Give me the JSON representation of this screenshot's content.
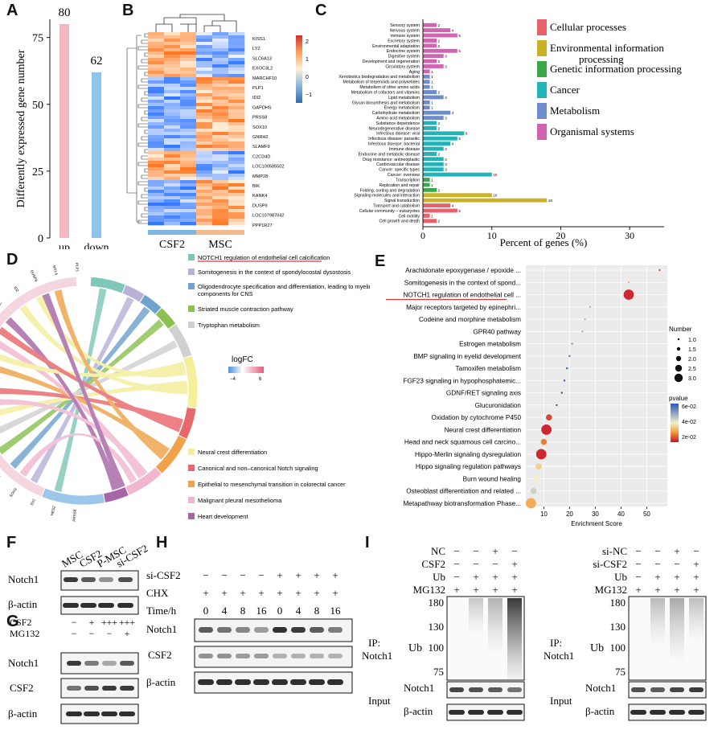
{
  "panels": {
    "A": "A",
    "B": "B",
    "C": "C",
    "D": "D",
    "E": "E",
    "F": "F",
    "G": "G",
    "H": "H",
    "I": "I"
  },
  "panelA": {
    "chart_data": {
      "type": "bar",
      "categories": [
        "up",
        "down"
      ],
      "values": [
        80,
        62
      ],
      "ylabel": "Differently expressed gene number",
      "ylim": [
        0,
        80
      ],
      "yticks": [
        0,
        25,
        50,
        75
      ],
      "colors": [
        "#f4b6c2",
        "#8ec3ea"
      ]
    }
  },
  "panelB": {
    "genes": [
      "KISS1",
      "LYZ",
      "SLC6A13",
      "EXOC3L2",
      "MARCHF10",
      "PLP1",
      "IDI2",
      "GAPDHS",
      "PRSS8",
      "SOX10",
      "GNRH2",
      "SLAMF9",
      "C2CD4D",
      "LOC100505502",
      "MMP28",
      "BIK",
      "KANK4",
      "DUSP9",
      "LOC107987042",
      "PPP1R27"
    ],
    "groups": [
      "CSF2",
      "MSC"
    ],
    "scale_ticks": [
      "2",
      "1",
      "0",
      "−1"
    ]
  },
  "panelC": {
    "chart_data": {
      "type": "bar",
      "xlabel": "Percent of genes (%)",
      "xticks": [
        0,
        10,
        20,
        30
      ],
      "xlim": [
        0,
        35
      ],
      "categories": [
        "Sensory system",
        "Nervous system",
        "Immune system",
        "Excretory system",
        "Environmental adaptation",
        "Endocrine system",
        "Digestive system",
        "Development and regeneration",
        "Circulatory system",
        "Aging",
        "Xenobiotics biodegradation and metabolism",
        "Metabolism of terpenoids and polyketides",
        "Metabolism of other amino acids",
        "Metabolism of cofactors and vitamins",
        "Lipid metabolism",
        "Glycan biosynthesis and metabolism",
        "Energy metabolism",
        "Carbohydrate metabolism",
        "Amino acid metabolism",
        "Substance dependence",
        "Neurodegenerative disease",
        "Infectious disease: viral",
        "Infectious disease: parasitic",
        "Infectious disease: bacterial",
        "Immune disease",
        "Endocrine and metabolic disease",
        "Drug resistance: antineoplastic",
        "Cardiovascular disease",
        "Cancer: specific types",
        "Cancer: overview",
        "Transcription",
        "Replication and repair",
        "Folding, sorting and degradation",
        "Signaling molecules and interaction",
        "Signal transduction",
        "Transport and catabolism",
        "Cellular community – eukaryotes",
        "Cell motility",
        "Cell growth and death"
      ],
      "values": [
        2,
        4,
        5,
        2,
        2,
        5,
        3,
        2,
        3,
        1,
        1,
        1,
        1,
        2,
        3,
        1,
        1,
        4,
        3,
        2,
        2,
        6,
        5,
        4,
        3,
        2,
        3,
        3,
        3,
        10,
        1,
        1,
        2,
        10,
        18,
        4,
        5,
        1,
        2
      ],
      "groups": [
        6,
        6,
        6,
        6,
        6,
        6,
        6,
        6,
        6,
        6,
        5,
        5,
        5,
        5,
        5,
        5,
        5,
        5,
        5,
        4,
        4,
        4,
        4,
        4,
        4,
        4,
        4,
        4,
        4,
        4,
        3,
        3,
        3,
        2,
        2,
        1,
        1,
        1,
        1
      ],
      "legend": [
        "Cellular processes",
        "Environmental information processing",
        "Genetic information processing",
        "Cancer",
        "Metabolism",
        "Organismal systems"
      ],
      "legend_colors": [
        "#e8606a",
        "#c9b227",
        "#3aa84a",
        "#22b3b8",
        "#6e8bcb",
        "#d163b1"
      ]
    }
  },
  "panelD": {
    "pathways_top": [
      "NOTCH1 regulation of endothelial cell calcification",
      "Somitogenesis in the context of spondylocostal dysostosis",
      "Oligodendrocyte specification and differentiation, leading to myelin components for CNS",
      "Striated muscle contraction pathway",
      "Tryptophan metabolism"
    ],
    "pathways_top_colors": [
      "#7fc7b6",
      "#b9b1d8",
      "#6fa3cf",
      "#8cc152",
      "#d0d0d0"
    ],
    "pathways_bottom": [
      "Neural crest differentiation",
      "Canonical and non–canonical Notch signaling",
      "Epithelial to mesenchymal transition in colorectal cancer",
      "Malignant pleural mesothelioma",
      "Heart development"
    ],
    "pathways_bottom_colors": [
      "#f3ef9b",
      "#e8676b",
      "#efa24a",
      "#f1b6cf",
      "#a766a6"
    ],
    "logfc_label": "logFC",
    "logfc_min": "−4",
    "logfc_max": "6",
    "genes": [
      "PLP1",
      "MYL4",
      "DUSP9",
      "ID2",
      "DLL1",
      "COL4A4",
      "PDF",
      "CCK",
      "PMP2",
      "CCL5",
      "SCL4",
      "DLX3",
      "HES1",
      "CYP1B1",
      "SOX9",
      "IDI2",
      "HES2",
      "PRSS8"
    ]
  },
  "panelE": {
    "chart_data": {
      "type": "scatter",
      "xlabel": "Enrichment Score",
      "xticks": [
        10,
        20,
        30,
        40,
        50
      ],
      "xlim": [
        3,
        58
      ],
      "categories": [
        "Arachidonate epoxygenase / epoxide ...",
        "Somitogenesis in the context of spond...",
        "NOTCH1 regulation of endothelial cell ...",
        "Major receptors targeted by epinephri...",
        "Codeine and morphine metabolism",
        "GPR40 pathway",
        "Estrogen metabolism",
        "BMP signaling in eyelid development",
        "Tamoxifen metabolism",
        "FGF23 signaling in hypophosphatemic...",
        "GDNF/RET signaling axis",
        "Glucuronidation",
        "Oxidation by cytochrome P450",
        "Neural crest differentiation",
        "Head and neck squamous cell carcino...",
        "Hippo-Merlin signaling dysregulation",
        "Hippo signaling regulation pathways",
        "Burn wound healing",
        "Osteoblast differentiation and related ...",
        "Metapathway biotransformation Phase..."
      ],
      "x": [
        55,
        43,
        43,
        28,
        26,
        25,
        21,
        20,
        19,
        18,
        17,
        15,
        12,
        11,
        10,
        9,
        8,
        7,
        6,
        5
      ],
      "number": [
        1,
        1,
        3,
        1,
        1,
        1,
        1,
        1,
        1,
        1,
        1,
        1,
        2,
        3,
        2,
        3,
        2,
        2,
        2,
        3
      ],
      "pvalue": [
        0.015,
        0.025,
        0.012,
        0.045,
        0.045,
        0.045,
        0.05,
        0.055,
        0.06,
        0.06,
        0.06,
        0.06,
        0.015,
        0.012,
        0.02,
        0.012,
        0.03,
        0.035,
        0.04,
        0.025
      ],
      "number_legend_title": "Number",
      "number_legend": [
        "1.0",
        "1.5",
        "2.0",
        "2.5",
        "3.0"
      ],
      "pvalue_legend_title": "pvalue",
      "pvalue_legend": [
        "6e-02",
        "4e-02",
        "2e-02"
      ]
    }
  },
  "panelF": {
    "lanes": [
      "MSC",
      "CSF2",
      "P-MSC",
      "si-CSF2"
    ],
    "rows": [
      "Notch1",
      "β-actin"
    ]
  },
  "panelG": {
    "cond_labels": [
      "CSF2",
      "MG132"
    ],
    "cond_values": [
      [
        "−",
        "+",
        "+++",
        "+++"
      ],
      [
        "−",
        "−",
        "−",
        "+"
      ]
    ],
    "rows": [
      "Notch1",
      "CSF2",
      "β-actin"
    ]
  },
  "panelH": {
    "cond_labels": [
      "si-CSF2",
      "CHX",
      "Time/h"
    ],
    "sicsf2": [
      "−",
      "−",
      "−",
      "−",
      "+",
      "+",
      "+",
      "+"
    ],
    "chx": [
      "+",
      "+",
      "+",
      "+",
      "+",
      "+",
      "+",
      "+"
    ],
    "time": [
      "0",
      "4",
      "8",
      "16",
      "0",
      "4",
      "8",
      "16"
    ],
    "rows": [
      "Notch1",
      "CSF2",
      "β-actin"
    ]
  },
  "panelI": {
    "left": {
      "cond_labels": [
        "NC",
        "CSF2",
        "Ub",
        "MG132"
      ],
      "cond_values": [
        [
          "−",
          "−",
          "+",
          "−"
        ],
        [
          "−",
          "−",
          "−",
          "+"
        ],
        [
          "−",
          "+",
          "+",
          "+"
        ],
        [
          "+",
          "+",
          "+",
          "+"
        ]
      ]
    },
    "right": {
      "cond_labels": [
        "si-NC",
        "si-CSF2",
        "Ub",
        "MG132"
      ],
      "cond_values": [
        [
          "−",
          "−",
          "+",
          "−"
        ],
        [
          "−",
          "−",
          "−",
          "+"
        ],
        [
          "−",
          "+",
          "+",
          "+"
        ],
        [
          "+",
          "+",
          "+",
          "+"
        ]
      ]
    },
    "ip_label_1": "IP:",
    "ip_label_2": "Notch1",
    "ub_label": "Ub",
    "mw": [
      "180",
      "130",
      "100",
      "75"
    ],
    "input_label": "Input",
    "input_rows": [
      "Notch1",
      "β-actin"
    ]
  }
}
